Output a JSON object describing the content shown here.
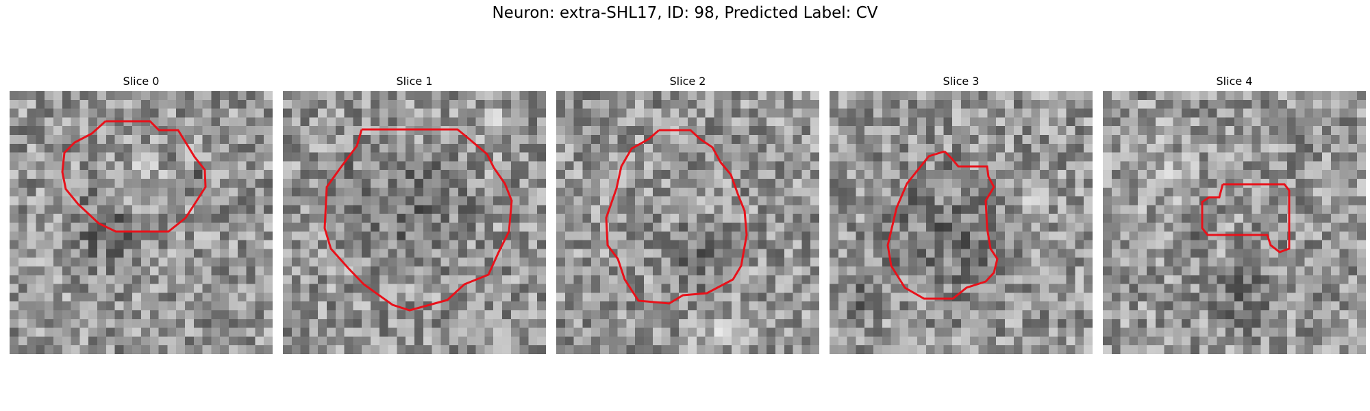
{
  "figure": {
    "title": "Neuron: extra-SHL17, ID: 98, Predicted Label: CV"
  },
  "colors": {
    "contour": "#e8111a",
    "background": "#ffffff"
  },
  "panels": [
    {
      "label": "Slice 0"
    },
    {
      "label": "Slice 1"
    },
    {
      "label": "Slice 2"
    },
    {
      "label": "Slice 3"
    },
    {
      "label": "Slice 4"
    }
  ]
}
